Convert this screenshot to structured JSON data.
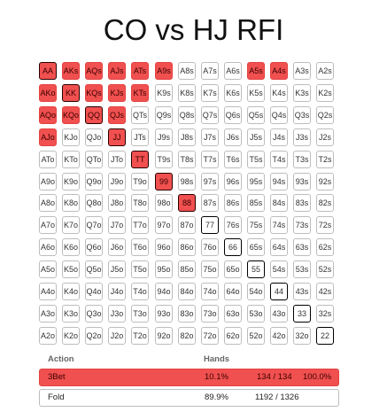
{
  "title": "CO vs HJ RFI",
  "colors": {
    "raise": "#f0504f",
    "fold": "#ffffff",
    "pair_border": "#000000"
  },
  "grid": {
    "rows": [
      [
        "AA",
        "AKs",
        "AQs",
        "AJs",
        "ATs",
        "A9s",
        "A8s",
        "A7s",
        "A6s",
        "A5s",
        "A4s",
        "A3s",
        "A2s"
      ],
      [
        "AKo",
        "KK",
        "KQs",
        "KJs",
        "KTs",
        "K9s",
        "K8s",
        "K7s",
        "K6s",
        "K5s",
        "K4s",
        "K3s",
        "K2s"
      ],
      [
        "AQo",
        "KQo",
        "QQ",
        "QJs",
        "QTs",
        "Q9s",
        "Q8s",
        "Q7s",
        "Q6s",
        "Q5s",
        "Q4s",
        "Q3s",
        "Q2s"
      ],
      [
        "AJo",
        "KJo",
        "QJo",
        "JJ",
        "JTs",
        "J9s",
        "J8s",
        "J7s",
        "J6s",
        "J5s",
        "J4s",
        "J3s",
        "J2s"
      ],
      [
        "ATo",
        "KTo",
        "QTo",
        "JTo",
        "TT",
        "T9s",
        "T8s",
        "T7s",
        "T6s",
        "T5s",
        "T4s",
        "T3s",
        "T2s"
      ],
      [
        "A9o",
        "K9o",
        "Q9o",
        "J9o",
        "T9o",
        "99",
        "98s",
        "97s",
        "96s",
        "95s",
        "94s",
        "93s",
        "92s"
      ],
      [
        "A8o",
        "K8o",
        "Q8o",
        "J8o",
        "T8o",
        "98o",
        "88",
        "87s",
        "86s",
        "85s",
        "84s",
        "83s",
        "82s"
      ],
      [
        "A7o",
        "K7o",
        "Q7o",
        "J7o",
        "T7o",
        "97o",
        "87o",
        "77",
        "76s",
        "75s",
        "74s",
        "73s",
        "72s"
      ],
      [
        "A6o",
        "K6o",
        "Q6o",
        "J6o",
        "T6o",
        "96o",
        "86o",
        "76o",
        "66",
        "65s",
        "64s",
        "63s",
        "62s"
      ],
      [
        "A5o",
        "K5o",
        "Q5o",
        "J5o",
        "T5o",
        "95o",
        "85o",
        "75o",
        "65o",
        "55",
        "54s",
        "53s",
        "52s"
      ],
      [
        "A4o",
        "K4o",
        "Q4o",
        "J4o",
        "T4o",
        "94o",
        "84o",
        "74o",
        "64o",
        "54o",
        "44",
        "43s",
        "42s"
      ],
      [
        "A3o",
        "K3o",
        "Q3o",
        "J3o",
        "T3o",
        "93o",
        "83o",
        "73o",
        "63o",
        "53o",
        "43o",
        "33",
        "32s"
      ],
      [
        "A2o",
        "K2o",
        "Q2o",
        "J2o",
        "T2o",
        "92o",
        "82o",
        "72o",
        "62o",
        "52o",
        "42o",
        "32o",
        "22"
      ]
    ],
    "raise_hands": [
      "AA",
      "AKs",
      "AQs",
      "AJs",
      "ATs",
      "A9s",
      "A5s",
      "A4s",
      "AKo",
      "KK",
      "KQs",
      "KJs",
      "KTs",
      "AQo",
      "KQo",
      "QQ",
      "QJs",
      "AJo",
      "JJ",
      "TT",
      "99",
      "88"
    ]
  },
  "actions": {
    "header": {
      "action": "Action",
      "hands": "Hands"
    },
    "rows": [
      {
        "name": "3Bet",
        "percent": "10.1%",
        "combos": "134 / 134",
        "share": "100.0%"
      },
      {
        "name": "Fold",
        "percent": "89.9%",
        "combos": "1192 / 1326",
        "share": ""
      }
    ]
  }
}
